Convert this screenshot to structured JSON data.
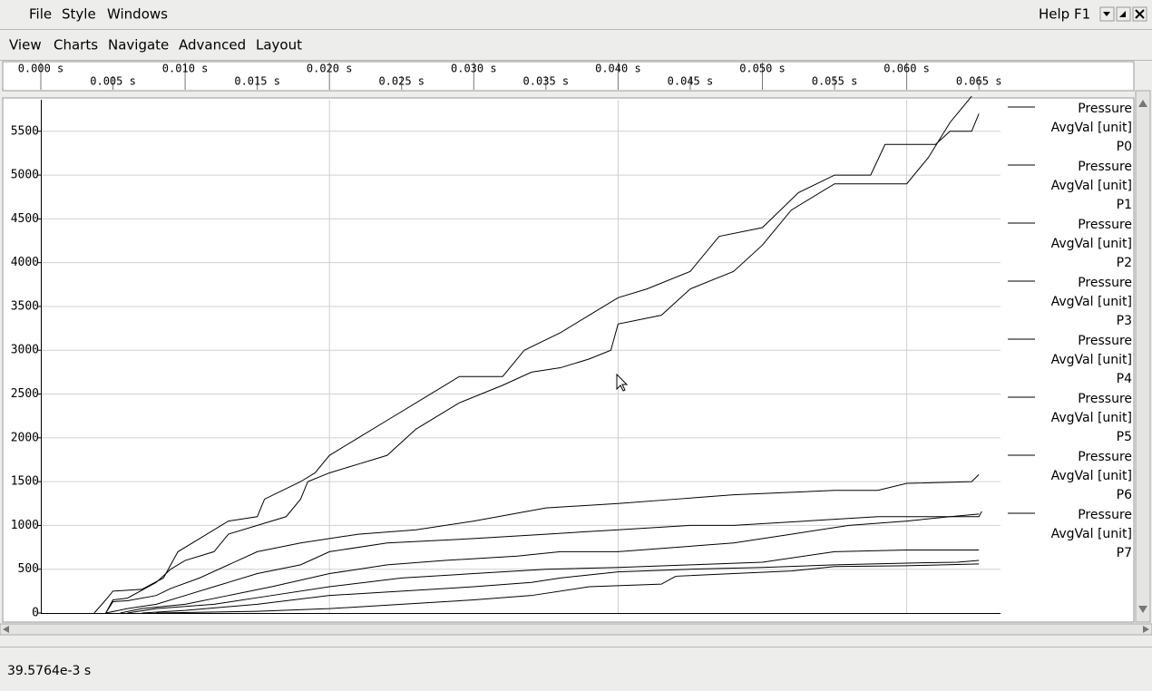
{
  "menu_bar": {
    "items": [
      "File",
      "Style",
      "Windows"
    ],
    "help": "Help F1"
  },
  "tool_bar": {
    "items": [
      "View",
      "Charts",
      "Navigate",
      "Advanced",
      "Layout"
    ]
  },
  "status_bar": {
    "text": "39.5764e-3 s"
  },
  "chart_data": {
    "type": "line",
    "grid": true,
    "xlim": [
      0,
      0.0665
    ],
    "ylim": [
      0,
      5860
    ],
    "xticks": [
      {
        "value": 0,
        "label": "0.000 s"
      },
      {
        "value": 0.005,
        "label": "0.005 s"
      },
      {
        "value": 0.01,
        "label": "0.010 s"
      },
      {
        "value": 0.015,
        "label": "0.015 s"
      },
      {
        "value": 0.02,
        "label": "0.020 s"
      },
      {
        "value": 0.025,
        "label": "0.025 s"
      },
      {
        "value": 0.03,
        "label": "0.030 s"
      },
      {
        "value": 0.035,
        "label": "0.035 s"
      },
      {
        "value": 0.04,
        "label": "0.040 s"
      },
      {
        "value": 0.045,
        "label": "0.045 s"
      },
      {
        "value": 0.05,
        "label": "0.050 s"
      },
      {
        "value": 0.055,
        "label": "0.055 s"
      },
      {
        "value": 0.06,
        "label": "0.060 s"
      },
      {
        "value": 0.065,
        "label": "0.065 s"
      }
    ],
    "xgrid": [
      0.02,
      0.04,
      0.06
    ],
    "yticks": [
      0,
      500,
      1000,
      1500,
      2000,
      2500,
      3000,
      3500,
      4000,
      4500,
      5000,
      5500
    ],
    "series": [
      {
        "name": "P0",
        "quantity": "Pressure",
        "unit_label": "AvgVal [unit]",
        "color": "#000000",
        "x": [
          0.0037,
          0.0045,
          0.005,
          0.007,
          0.0085,
          0.0095,
          0.011,
          0.013,
          0.015,
          0.0155,
          0.018,
          0.019,
          0.02,
          0.022,
          0.024,
          0.027,
          0.029,
          0.032,
          0.0335,
          0.036,
          0.038,
          0.04,
          0.042,
          0.045,
          0.047,
          0.05,
          0.0525,
          0.055,
          0.0575,
          0.0585,
          0.062,
          0.063,
          0.0645,
          0.065
        ],
        "values": [
          0,
          150,
          250,
          270,
          400,
          700,
          850,
          1050,
          1100,
          1300,
          1500,
          1600,
          1800,
          2000,
          2200,
          2500,
          2700,
          2700,
          3000,
          3200,
          3400,
          3600,
          3700,
          3900,
          4300,
          4400,
          4800,
          5000,
          5000,
          5350,
          5350,
          5500,
          5500,
          5700
        ]
      },
      {
        "name": "P1",
        "quantity": "Pressure",
        "unit_label": "AvgVal [unit]",
        "color": "#000000",
        "x": [
          0.0045,
          0.005,
          0.006,
          0.008,
          0.009,
          0.01,
          0.012,
          0.013,
          0.015,
          0.017,
          0.018,
          0.0185,
          0.02,
          0.022,
          0.024,
          0.026,
          0.029,
          0.032,
          0.034,
          0.036,
          0.038,
          0.0395,
          0.04,
          0.043,
          0.045,
          0.048,
          0.05,
          0.052,
          0.055,
          0.06,
          0.0615,
          0.063,
          0.0645
        ],
        "values": [
          0,
          150,
          170,
          350,
          500,
          600,
          700,
          900,
          1000,
          1100,
          1300,
          1500,
          1600,
          1700,
          1800,
          2100,
          2400,
          2600,
          2750,
          2800,
          2900,
          3000,
          3300,
          3400,
          3700,
          3900,
          4200,
          4600,
          4900,
          4900,
          5200,
          5600,
          5900
        ]
      },
      {
        "name": "P2",
        "quantity": "Pressure",
        "unit_label": "AvgVal [unit]",
        "color": "#000000",
        "x": [
          0.0045,
          0.005,
          0.006,
          0.008,
          0.009,
          0.011,
          0.013,
          0.015,
          0.018,
          0.022,
          0.026,
          0.03,
          0.035,
          0.04,
          0.044,
          0.048,
          0.055,
          0.058,
          0.06,
          0.0645,
          0.065
        ],
        "values": [
          0,
          130,
          140,
          200,
          280,
          400,
          550,
          700,
          800,
          900,
          950,
          1050,
          1200,
          1250,
          1300,
          1350,
          1400,
          1400,
          1480,
          1500,
          1580
        ]
      },
      {
        "name": "P3",
        "quantity": "Pressure",
        "unit_label": "AvgVal [unit]",
        "color": "#000000",
        "x": [
          0.0045,
          0.006,
          0.008,
          0.01,
          0.012,
          0.015,
          0.018,
          0.02,
          0.024,
          0.03,
          0.035,
          0.04,
          0.045,
          0.048,
          0.053,
          0.058,
          0.065,
          0.0652
        ],
        "values": [
          0,
          50,
          100,
          200,
          300,
          450,
          550,
          700,
          800,
          850,
          900,
          950,
          1000,
          1000,
          1050,
          1100,
          1100,
          1160
        ]
      },
      {
        "name": "P4",
        "quantity": "Pressure",
        "unit_label": "AvgVal [unit]",
        "color": "#000000",
        "x": [
          0.0055,
          0.007,
          0.01,
          0.013,
          0.016,
          0.02,
          0.024,
          0.028,
          0.033,
          0.036,
          0.04,
          0.048,
          0.052,
          0.056,
          0.06,
          0.063,
          0.065
        ],
        "values": [
          0,
          50,
          100,
          200,
          300,
          450,
          550,
          600,
          650,
          700,
          700,
          800,
          900,
          1000,
          1050,
          1100,
          1130
        ]
      },
      {
        "name": "P5",
        "quantity": "Pressure",
        "unit_label": "AvgVal [unit]",
        "color": "#000000",
        "x": [
          0.006,
          0.008,
          0.012,
          0.016,
          0.02,
          0.025,
          0.03,
          0.035,
          0.04,
          0.045,
          0.05,
          0.055,
          0.06,
          0.065
        ],
        "values": [
          0,
          50,
          100,
          200,
          300,
          400,
          450,
          500,
          520,
          550,
          580,
          700,
          720,
          720
        ]
      },
      {
        "name": "P6",
        "quantity": "Pressure",
        "unit_label": "AvgVal [unit]",
        "color": "#000000",
        "x": [
          0.007,
          0.01,
          0.015,
          0.02,
          0.025,
          0.03,
          0.034,
          0.036,
          0.04,
          0.045,
          0.05,
          0.055,
          0.06,
          0.0635,
          0.065
        ],
        "values": [
          0,
          30,
          100,
          200,
          250,
          300,
          350,
          400,
          470,
          500,
          520,
          550,
          570,
          580,
          600
        ]
      },
      {
        "name": "P7",
        "quantity": "Pressure",
        "unit_label": "AvgVal [unit]",
        "color": "#000000",
        "x": [
          0.008,
          0.015,
          0.02,
          0.025,
          0.03,
          0.034,
          0.038,
          0.043,
          0.044,
          0.048,
          0.052,
          0.055,
          0.06,
          0.065
        ],
        "values": [
          0,
          20,
          50,
          100,
          150,
          200,
          300,
          330,
          420,
          450,
          480,
          530,
          540,
          560
        ]
      }
    ]
  }
}
